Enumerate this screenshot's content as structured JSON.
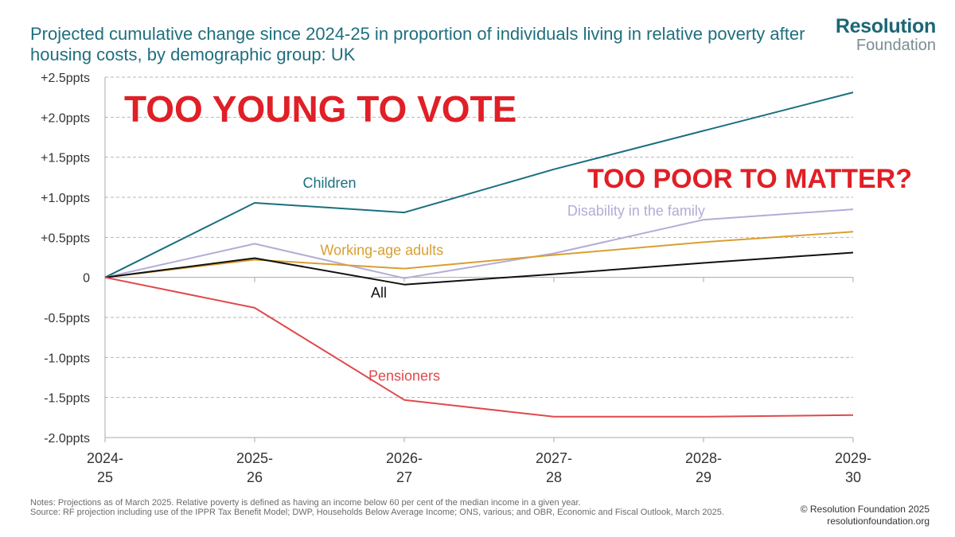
{
  "title": "Projected cumulative change since 2024-25 in proportion of individuals living in relative poverty after housing costs, by demographic group: UK",
  "logo": {
    "line1": "Resolution",
    "line2": "Foundation"
  },
  "overlay_text": {
    "headline": "TOO YOUNG TO VOTE",
    "subhead": "TOO POOR TO MATTER?"
  },
  "notes": {
    "line1": "Notes: Projections as of March 2025. Relative poverty is defined as having an income below 60 per cent of the median income in a given year.",
    "line2": "Source: RF projection including use of the IPPR Tax Benefit Model; DWP, Households Below Average Income; ONS, various; and OBR, Economic and Fiscal Outlook, March 2025."
  },
  "credit": {
    "copyright": "© Resolution Foundation 2025",
    "website": "resolutionfoundation.org"
  },
  "chart_data": {
    "type": "line",
    "x": [
      "2024-25",
      "2025-26",
      "2026-27",
      "2027-28",
      "2028-29",
      "2029-30"
    ],
    "x_tick_labels": [
      [
        "2024-",
        "25"
      ],
      [
        "2025-",
        "26"
      ],
      [
        "2026-",
        "27"
      ],
      [
        "2027-",
        "28"
      ],
      [
        "2028-",
        "29"
      ],
      [
        "2029-",
        "30"
      ]
    ],
    "ylim": [
      -2.0,
      2.5
    ],
    "y_ticks": [
      2.5,
      2.0,
      1.5,
      1.0,
      0.5,
      0,
      -0.5,
      -1.0,
      -1.5,
      -2.0
    ],
    "y_tick_labels": [
      "+2.5ppts",
      "+2.0ppts",
      "+1.5ppts",
      "+1.0ppts",
      "+0.5ppts",
      "0",
      "-0.5ppts",
      "-1.0ppts",
      "-1.5ppts",
      "-2.0ppts"
    ],
    "grid": true,
    "series": [
      {
        "name": "Children",
        "color": "#1b6f80",
        "values": [
          0,
          0.93,
          0.81,
          1.35,
          1.83,
          2.31
        ]
      },
      {
        "name": "Disability in the family",
        "color": "#b3acd6",
        "values": [
          0,
          0.42,
          -0.01,
          0.3,
          0.72,
          0.85
        ]
      },
      {
        "name": "Working-age adults",
        "color": "#d99f30",
        "values": [
          0,
          0.22,
          0.11,
          0.28,
          0.44,
          0.57
        ]
      },
      {
        "name": "All",
        "color": "#111111",
        "values": [
          0,
          0.24,
          -0.09,
          0.04,
          0.18,
          0.31
        ]
      },
      {
        "name": "Pensioners",
        "color": "#e0494b",
        "values": [
          0,
          -0.38,
          -1.53,
          -1.74,
          -1.74,
          -1.72
        ]
      }
    ],
    "series_labels": [
      {
        "series": "Children",
        "x": 1.5,
        "y": 1.12
      },
      {
        "series": "Disability in the family",
        "x": 3.55,
        "y": 0.77
      },
      {
        "series": "Working-age adults",
        "x": 1.85,
        "y": 0.28
      },
      {
        "series": "All",
        "x": 1.83,
        "y": -0.25
      },
      {
        "series": "Pensioners",
        "x": 2.0,
        "y": -1.29
      }
    ]
  }
}
